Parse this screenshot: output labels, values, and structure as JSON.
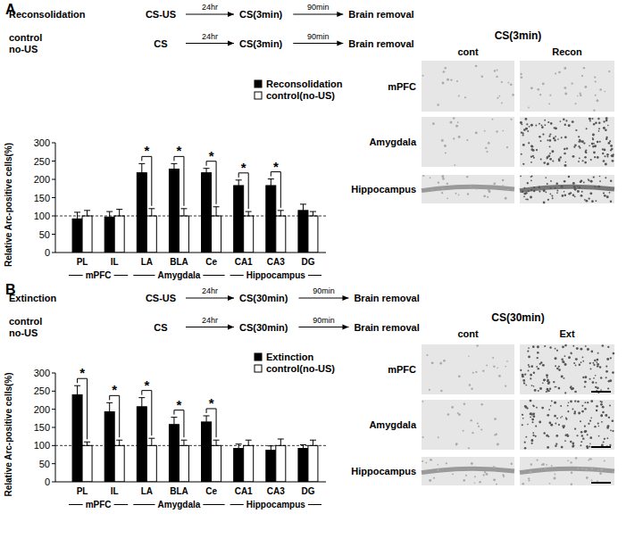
{
  "chart_data": [
    {
      "type": "bar",
      "panel": "A",
      "protocol": [
        {
          "label": [
            "Reconsolidation"
          ],
          "stages": [
            "CS-US",
            "CS(3min)",
            "Brain removal"
          ],
          "intervals": [
            "24hr",
            "90min"
          ]
        },
        {
          "label": [
            "control",
            "no-US"
          ],
          "stages": [
            "CS",
            "CS(3min)",
            "Brain removal"
          ],
          "intervals": [
            "24hr",
            "90min"
          ]
        }
      ],
      "categories": [
        "PL",
        "IL",
        "LA",
        "BLA",
        "Ce",
        "CA1",
        "CA3",
        "DG"
      ],
      "category_groups": [
        "mPFC",
        "mPFC",
        "Amygdala",
        "Amygdala",
        "Amygdala",
        "Hippocampus",
        "Hippocampus",
        "Hippocampus"
      ],
      "y_label": "Relative Arc-positive cells(%)",
      "ylim": [
        0,
        300
      ],
      "yticks": [
        0,
        50,
        100,
        150,
        200,
        250,
        300
      ],
      "reference_line": 100,
      "series": [
        {
          "name": "Reconsolidation",
          "color": "#000000",
          "values": [
            92,
            97,
            218,
            228,
            218,
            183,
            183,
            115
          ],
          "errors": [
            18,
            15,
            25,
            15,
            12,
            15,
            18,
            17
          ]
        },
        {
          "name": "control(no-US)",
          "color": "#ffffff",
          "values": [
            100,
            100,
            100,
            100,
            100,
            100,
            100,
            100
          ],
          "errors": [
            15,
            18,
            20,
            20,
            25,
            12,
            15,
            12
          ]
        }
      ],
      "annotations": {
        "text": "*",
        "categories": [
          "LA",
          "BLA",
          "Ce",
          "CA1",
          "CA3"
        ]
      },
      "legend": "top-right",
      "images": {
        "title": "CS(3min)",
        "columns": [
          "cont",
          "Recon"
        ],
        "rows": [
          "mPFC",
          "Amygdala",
          "Hippocampus"
        ]
      }
    },
    {
      "type": "bar",
      "panel": "B",
      "protocol": [
        {
          "label": [
            "Extinction"
          ],
          "stages": [
            "CS-US",
            "CS(30min)",
            "Brain removal"
          ],
          "intervals": [
            "24hr",
            "90min"
          ]
        },
        {
          "label": [
            "control",
            "no-US"
          ],
          "stages": [
            "CS",
            "CS(30min)",
            "Brain removal"
          ],
          "intervals": [
            "24hr",
            "90min"
          ]
        }
      ],
      "categories": [
        "PL",
        "IL",
        "LA",
        "BLA",
        "Ce",
        "CA1",
        "CA3",
        "DG"
      ],
      "category_groups": [
        "mPFC",
        "mPFC",
        "Amygdala",
        "Amygdala",
        "Amygdala",
        "Hippocampus",
        "Hippocampus",
        "Hippocampus"
      ],
      "y_label": "Relative Arc-positive cells(%)",
      "ylim": [
        0,
        300
      ],
      "yticks": [
        0,
        50,
        100,
        150,
        200,
        250,
        300
      ],
      "reference_line": 100,
      "series": [
        {
          "name": "Extinction",
          "color": "#000000",
          "values": [
            240,
            193,
            207,
            158,
            165,
            92,
            87,
            92
          ],
          "errors": [
            25,
            25,
            25,
            20,
            17,
            12,
            12,
            10
          ]
        },
        {
          "name": "control(no-US)",
          "color": "#ffffff",
          "values": [
            100,
            100,
            100,
            100,
            100,
            100,
            100,
            100
          ],
          "errors": [
            10,
            15,
            20,
            15,
            15,
            15,
            18,
            15
          ]
        }
      ],
      "annotations": {
        "text": "*",
        "categories": [
          "PL",
          "IL",
          "LA",
          "BLA",
          "Ce"
        ]
      },
      "legend": "top-right",
      "images": {
        "title": "CS(30min)",
        "columns": [
          "cont",
          "Ext"
        ],
        "rows": [
          "mPFC",
          "Amygdala",
          "Hippocampus"
        ]
      }
    }
  ]
}
